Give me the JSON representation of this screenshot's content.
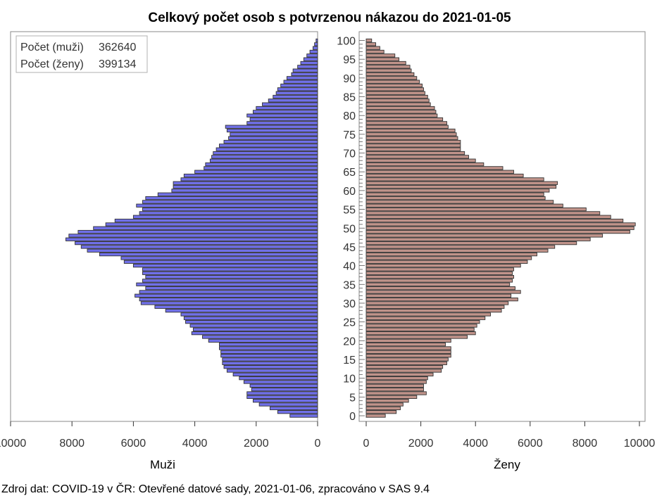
{
  "title": "Celkový počet osob s potvrzenou nákazou do 2021-01-05",
  "footnote": "Zdroj dat: COVID-19 v ČR: Otevřené datové sady, 2021-01-06, zpracováno v SAS 9.4",
  "legend": {
    "men_label": "Počet (muži)",
    "men_value": "362640",
    "women_label": "Počet (ženy)",
    "women_value": "399134"
  },
  "colors": {
    "men_fill": "#7070e8",
    "women_fill": "#c0938a",
    "outline": "#333333"
  },
  "chart_data": [
    {
      "type": "bar",
      "orientation": "horizontal",
      "xlabel": "Muži",
      "xlim": [
        10000,
        0
      ],
      "x_ticks": [
        "10000",
        "8000",
        "6000",
        "4000",
        "2000",
        "0"
      ],
      "y_ticks": [
        "0",
        "5",
        "10",
        "15",
        "20",
        "25",
        "30",
        "35",
        "40",
        "45",
        "50",
        "55",
        "60",
        "65",
        "70",
        "75",
        "80",
        "85",
        "90",
        "95",
        "100"
      ],
      "ylim": [
        0,
        100
      ],
      "categories_start": 0,
      "values": [
        900,
        1300,
        1550,
        1900,
        2100,
        2300,
        2300,
        2150,
        2200,
        2400,
        2550,
        2750,
        2950,
        3050,
        3100,
        3100,
        3150,
        3150,
        3200,
        3200,
        3550,
        3750,
        4100,
        4050,
        4150,
        4300,
        4350,
        4450,
        4950,
        5300,
        5750,
        5800,
        5950,
        5800,
        5600,
        5900,
        5700,
        5600,
        5700,
        5700,
        6000,
        6300,
        6400,
        7100,
        7500,
        7700,
        7900,
        8200,
        8100,
        7800,
        7300,
        6900,
        6600,
        6000,
        5800,
        5700,
        5900,
        5700,
        5600,
        5200,
        4750,
        4700,
        4700,
        4450,
        4350,
        4000,
        3700,
        3650,
        3500,
        3450,
        3400,
        3300,
        3200,
        3050,
        2900,
        2850,
        2950,
        3000,
        2300,
        2200,
        2300,
        2100,
        2000,
        1800,
        1600,
        1450,
        1350,
        1300,
        1200,
        1100,
        1000,
        850,
        800,
        650,
        550,
        450,
        350,
        250,
        150,
        100,
        50
      ]
    },
    {
      "type": "bar",
      "orientation": "horizontal",
      "xlabel": "Ženy",
      "xlim": [
        0,
        10000
      ],
      "x_ticks": [
        "0",
        "2000",
        "4000",
        "6000",
        "8000",
        "10000"
      ],
      "ylim": [
        0,
        100
      ],
      "categories_start": 0,
      "values": [
        700,
        1100,
        1250,
        1350,
        1550,
        1850,
        2200,
        2100,
        2100,
        2200,
        2250,
        2450,
        2750,
        2800,
        2950,
        3000,
        3100,
        3100,
        3100,
        2900,
        3100,
        3700,
        4000,
        3950,
        4050,
        4150,
        4350,
        4550,
        4950,
        5050,
        5200,
        5550,
        5300,
        5650,
        5450,
        5250,
        5350,
        5400,
        5350,
        5400,
        5650,
        5900,
        6050,
        6250,
        6650,
        6900,
        7700,
        8200,
        8650,
        9650,
        9800,
        9850,
        9400,
        8950,
        8550,
        8050,
        7200,
        6850,
        6550,
        6500,
        6700,
        6950,
        7000,
        6500,
        5750,
        5400,
        5000,
        4300,
        4000,
        3750,
        3600,
        3450,
        3450,
        3450,
        3350,
        3300,
        3250,
        3000,
        2950,
        2800,
        2600,
        2550,
        2500,
        2350,
        2300,
        2250,
        2150,
        2100,
        2050,
        1950,
        1850,
        1750,
        1650,
        1600,
        1450,
        1200,
        1050,
        650,
        500,
        350,
        200
      ]
    }
  ]
}
